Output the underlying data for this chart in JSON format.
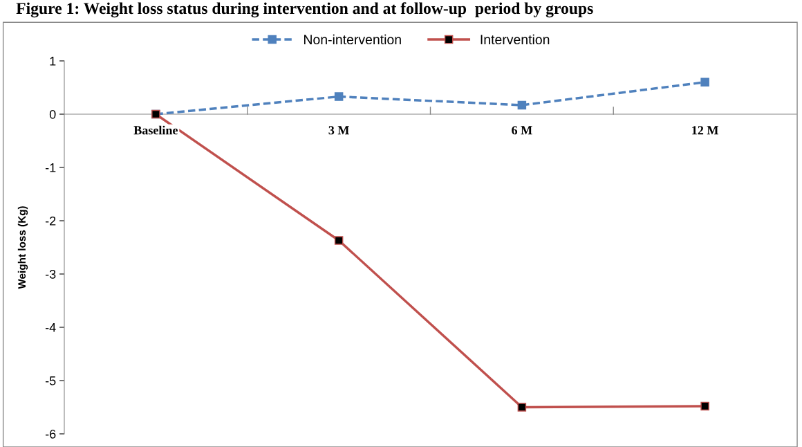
{
  "chart_data": {
    "type": "line",
    "title": "Figure 1: Weight loss status during intervention and at follow-up  period by groups",
    "ylabel": "Weight loss (Kg)",
    "categories": [
      "Baseline",
      "3 M",
      "6 M",
      "12 M"
    ],
    "series": [
      {
        "name": "Non-intervention",
        "color": "#4f81bd",
        "values": [
          0,
          0.33,
          0.17,
          0.6
        ],
        "line_style": "dashed"
      },
      {
        "name": "Intervention",
        "color": "#c0504d",
        "values": [
          0,
          -2.37,
          -5.5,
          -5.48
        ],
        "line_style": "solid"
      }
    ],
    "ylim": [
      -6,
      1
    ],
    "yticks": [
      -6,
      -5,
      -4,
      -3,
      -2,
      -1,
      0,
      1
    ],
    "grid": false,
    "legend": "top",
    "marker": "square"
  }
}
